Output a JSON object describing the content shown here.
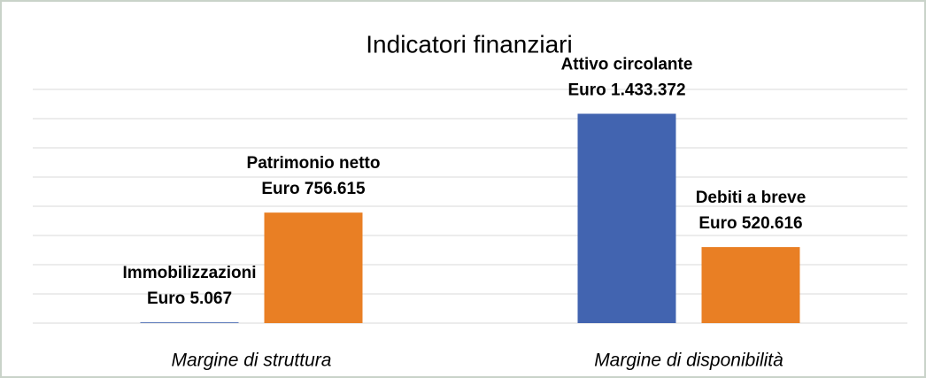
{
  "chart_data": {
    "type": "bar",
    "title": "Indicatori finanziari",
    "categories": [
      "Margine di struttura",
      "Margine di disponibilità"
    ],
    "series": [
      {
        "color": "#4264b0",
        "values": [
          5067,
          1433372
        ],
        "bar_labels": [
          "Immobilizzazioni",
          "Attivo circolante"
        ],
        "value_labels": [
          "Euro 5.067",
          "Euro 1.433.372"
        ]
      },
      {
        "color": "#e97f24",
        "values": [
          756615,
          520616
        ],
        "bar_labels": [
          "Patrimonio netto",
          "Debiti a breve"
        ],
        "value_labels": [
          "Euro 756.615",
          "Euro 520.616"
        ]
      }
    ],
    "ylim": [
      0,
      1600000
    ],
    "yticks": [
      0,
      200000,
      400000,
      600000,
      800000,
      1000000,
      1200000,
      1400000,
      1600000
    ],
    "grid": true
  }
}
